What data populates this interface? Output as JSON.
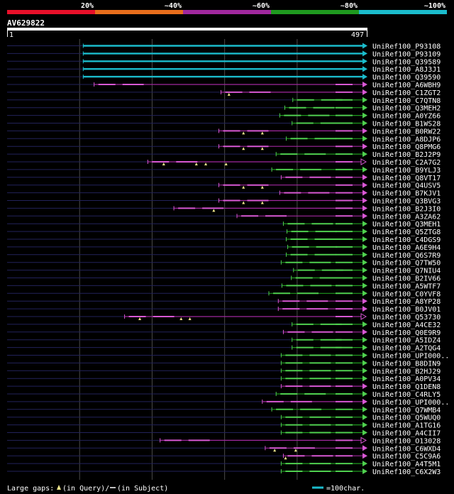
{
  "chart_data": {
    "type": "alignment-overview",
    "title": "AV629822",
    "query_length": 497,
    "ruler": {
      "start_label": "1",
      "end_label": "497"
    },
    "identity_scale": [
      {
        "label": "20%",
        "color": "#e8102a"
      },
      {
        "label": "~40%",
        "color": "#e86e1c"
      },
      {
        "label": "~60%",
        "color": "#a0289e"
      },
      {
        "label": "~80%",
        "color": "#1f9a1f"
      },
      {
        "label": "~100%",
        "color": "#1bbccc"
      }
    ],
    "rows": [
      {
        "name": "UniRef100_P93108",
        "start": 106,
        "color": "cyan",
        "gaps": []
      },
      {
        "name": "UniRef100_P93109",
        "start": 106,
        "color": "cyan",
        "gaps": []
      },
      {
        "name": "UniRef100_Q39589",
        "start": 106,
        "color": "cyan",
        "gaps": []
      },
      {
        "name": "UniRef100_A8J3J1",
        "start": 106,
        "color": "cyan",
        "gaps": []
      },
      {
        "name": "UniRef100_Q39590",
        "start": 106,
        "color": "cyan",
        "gaps": []
      },
      {
        "name": "UniRef100_A6WBH9",
        "start": 121,
        "color": "purple",
        "gaps": []
      },
      {
        "name": "UniRef100_C1ZGT2",
        "start": 296,
        "color": "purple",
        "gaps": [
          307
        ]
      },
      {
        "name": "UniRef100_C7QTN8",
        "start": 395,
        "color": "green",
        "gaps": []
      },
      {
        "name": "UniRef100_Q3MEH2",
        "start": 384,
        "color": "green",
        "gaps": []
      },
      {
        "name": "UniRef100_A0YZ66",
        "start": 377,
        "color": "green",
        "gaps": []
      },
      {
        "name": "UniRef100_B1WS28",
        "start": 394,
        "color": "green",
        "gaps": []
      },
      {
        "name": "UniRef100_B0RW22",
        "start": 293,
        "color": "purple",
        "gaps": [
          327,
          353
        ]
      },
      {
        "name": "UniRef100_A8DJP6",
        "start": 386,
        "color": "green",
        "gaps": []
      },
      {
        "name": "UniRef100_Q8PMG6",
        "start": 293,
        "color": "purple",
        "gaps": [
          327,
          353
        ]
      },
      {
        "name": "UniRef100_B2J2P9",
        "start": 372,
        "color": "green",
        "gaps": []
      },
      {
        "name": "UniRef100_C2A7G2",
        "start": 195,
        "end": 567,
        "color": "purple",
        "gaps": [
          217,
          262,
          275,
          303
        ]
      },
      {
        "name": "UniRef100_B9YLJ3",
        "start": 366,
        "color": "green",
        "gaps": []
      },
      {
        "name": "UniRef100_Q8VT17",
        "start": 379,
        "color": "purple",
        "gaps": []
      },
      {
        "name": "UniRef100_Q4USV5",
        "start": 293,
        "color": "purple",
        "gaps": [
          327,
          353
        ]
      },
      {
        "name": "UniRef100_B7KJV1",
        "start": 377,
        "color": "purple",
        "gaps": []
      },
      {
        "name": "UniRef100_Q3BVG3",
        "start": 293,
        "color": "purple",
        "gaps": [
          327,
          353
        ]
      },
      {
        "name": "UniRef100_B2J3I0",
        "start": 231,
        "color": "purple",
        "gaps": [
          286
        ]
      },
      {
        "name": "UniRef100_A3ZA62",
        "start": 318,
        "color": "purple",
        "gaps": []
      },
      {
        "name": "UniRef100_Q3MEH1",
        "start": 382,
        "color": "green",
        "gaps": []
      },
      {
        "name": "UniRef100_Q5ZTG8",
        "start": 387,
        "color": "green",
        "gaps": []
      },
      {
        "name": "UniRef100_C4DGS9",
        "start": 386,
        "color": "green",
        "gaps": []
      },
      {
        "name": "UniRef100_A6E9H4",
        "start": 388,
        "color": "green",
        "gaps": []
      },
      {
        "name": "UniRef100_Q6S7R9",
        "start": 386,
        "color": "green",
        "gaps": []
      },
      {
        "name": "UniRef100_Q7TW50",
        "start": 379,
        "color": "green",
        "gaps": []
      },
      {
        "name": "UniRef100_Q7NIU4",
        "start": 396,
        "color": "green",
        "gaps": []
      },
      {
        "name": "UniRef100_B2IV66",
        "start": 393,
        "color": "green",
        "gaps": []
      },
      {
        "name": "UniRef100_A5WTF7",
        "start": 380,
        "color": "green",
        "gaps": []
      },
      {
        "name": "UniRef100_C0YVF8",
        "start": 362,
        "color": "green",
        "gaps": []
      },
      {
        "name": "UniRef100_A8YP28",
        "start": 375,
        "color": "purple",
        "gaps": []
      },
      {
        "name": "UniRef100_B0JV01",
        "start": 375,
        "color": "purple",
        "gaps": []
      },
      {
        "name": "UniRef100_Q53730",
        "start": 163,
        "end": 574,
        "color": "purple",
        "gaps": [
          184,
          241,
          253
        ]
      },
      {
        "name": "UniRef100_A4CE32",
        "start": 394,
        "color": "green",
        "gaps": []
      },
      {
        "name": "UniRef100_Q0E9R9",
        "start": 382,
        "color": "purple",
        "gaps": []
      },
      {
        "name": "UniRef100_A5IDZ4",
        "start": 394,
        "color": "green",
        "gaps": []
      },
      {
        "name": "UniRef100_A2TQG4",
        "start": 394,
        "color": "green",
        "gaps": []
      },
      {
        "name": "UniRef100_UPI000..",
        "start": 379,
        "color": "green",
        "gaps": []
      },
      {
        "name": "UniRef100_B8DIN9",
        "start": 379,
        "color": "green",
        "gaps": []
      },
      {
        "name": "UniRef100_B2HJ29",
        "start": 379,
        "color": "green",
        "gaps": []
      },
      {
        "name": "UniRef100_A0PV34",
        "start": 379,
        "color": "green",
        "gaps": []
      },
      {
        "name": "UniRef100_Q1DEN8",
        "start": 379,
        "color": "purple",
        "gaps": []
      },
      {
        "name": "UniRef100_C4RLY5",
        "start": 372,
        "color": "green",
        "gaps": []
      },
      {
        "name": "UniRef100_UPI000..",
        "start": 353,
        "color": "purple",
        "gaps": []
      },
      {
        "name": "UniRef100_Q7WMB4",
        "start": 366,
        "color": "green",
        "gaps": []
      },
      {
        "name": "UniRef100_Q5WUQ0",
        "start": 379,
        "color": "green",
        "gaps": []
      },
      {
        "name": "UniRef100_A1TG16",
        "start": 379,
        "color": "green",
        "gaps": []
      },
      {
        "name": "UniRef100_A4CII7",
        "start": 379,
        "color": "green",
        "gaps": []
      },
      {
        "name": "UniRef100_O13028",
        "start": 212,
        "end": 574,
        "color": "purple",
        "gaps": []
      },
      {
        "name": "UniRef100_C6WXD4",
        "start": 357,
        "color": "purple",
        "gaps": [
          370,
          399
        ]
      },
      {
        "name": "UniRef100_C5C9A6",
        "start": 382,
        "color": "purple",
        "gaps": [
          385
        ]
      },
      {
        "name": "UniRef100_A4T5M1",
        "start": 379,
        "color": "green",
        "gaps": []
      },
      {
        "name": "UniRef100_C6X2W3",
        "start": 379,
        "color": "green",
        "gaps": []
      }
    ]
  },
  "footer": {
    "legend_prefix": "Large gaps: ",
    "query_note": "(in Query)/",
    "subject_note": "(in Subject)",
    "scale_note": "=100char."
  }
}
